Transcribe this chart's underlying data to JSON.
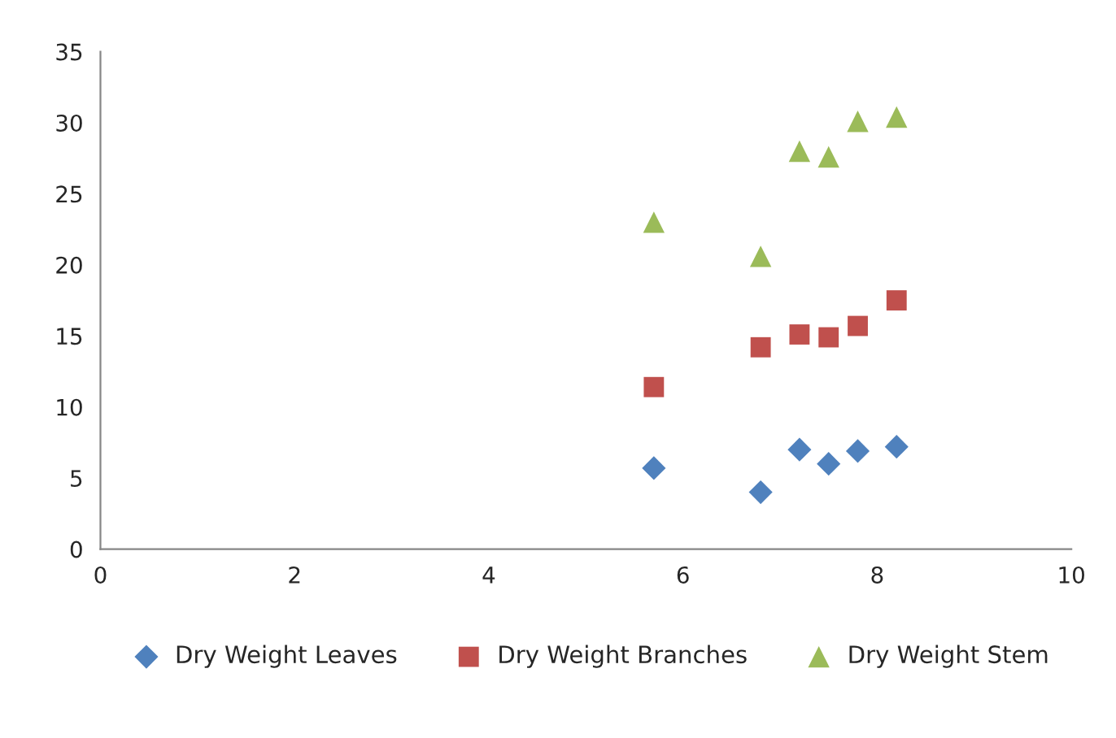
{
  "chart_data": {
    "type": "scatter",
    "x": [
      5.7,
      6.8,
      7.2,
      7.5,
      7.8,
      8.2
    ],
    "series": [
      {
        "name": "Dry Weight Leaves",
        "color": "#4f81bd",
        "marker": "diamond",
        "values": [
          5.7,
          4.0,
          7.0,
          6.0,
          6.9,
          7.2
        ]
      },
      {
        "name": "Dry Weight Branches",
        "color": "#c0504d",
        "marker": "square",
        "values": [
          11.4,
          14.2,
          15.1,
          14.9,
          15.7,
          17.5
        ]
      },
      {
        "name": "Dry Weight Stem",
        "color": "#9bbb59",
        "marker": "triangle",
        "values": [
          23.0,
          20.6,
          28.0,
          27.6,
          30.1,
          30.4
        ]
      }
    ],
    "xlim": [
      0,
      10
    ],
    "xticks": [
      0,
      2,
      4,
      6,
      8,
      10
    ],
    "ylim": [
      0,
      35
    ],
    "yticks": [
      0,
      5,
      10,
      15,
      20,
      25,
      30,
      35
    ],
    "grid": false,
    "legend": "bottom"
  }
}
